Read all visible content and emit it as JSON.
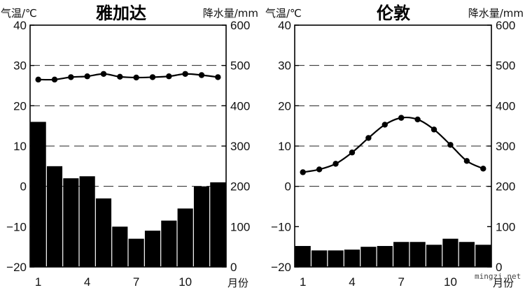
{
  "chart_data": [
    {
      "type": "bar+line",
      "title": "雅加达",
      "left_unit": "气温/℃",
      "right_unit": "降水量/mm",
      "x_unit": "月份",
      "categories": [
        "1",
        "2",
        "3",
        "4",
        "5",
        "6",
        "7",
        "8",
        "9",
        "10",
        "11",
        "12"
      ],
      "x_tick_labels": [
        "1",
        "4",
        "7",
        "10"
      ],
      "y_left_ticks": [
        "40",
        "30",
        "20",
        "10",
        "0",
        "−10",
        "−20"
      ],
      "y_right_ticks": [
        "600",
        "500",
        "400",
        "300",
        "200",
        "100",
        "0"
      ],
      "temperature_ylim": [
        -20,
        40
      ],
      "precipitation_ylim": [
        0,
        600
      ],
      "grid": "dashed at 0,10,20,30",
      "series": [
        {
          "name": "气温",
          "type": "line",
          "values": [
            26.5,
            26.5,
            27.1,
            27.3,
            27.9,
            27.2,
            27.0,
            27.1,
            27.3,
            27.9,
            27.6,
            27.1
          ]
        },
        {
          "name": "降水量",
          "type": "bar",
          "values": [
            360,
            250,
            220,
            225,
            170,
            100,
            70,
            90,
            115,
            145,
            200,
            210
          ]
        }
      ]
    },
    {
      "type": "bar+line",
      "title": "伦敦",
      "left_unit": "气温/℃",
      "right_unit": "降水量/mm",
      "x_unit": "月份",
      "categories": [
        "1",
        "2",
        "3",
        "4",
        "5",
        "6",
        "7",
        "8",
        "9",
        "10",
        "11",
        "12"
      ],
      "x_tick_labels": [
        "1",
        "4",
        "7",
        "10"
      ],
      "y_left_ticks": [
        "40",
        "30",
        "20",
        "10",
        "0",
        "−10",
        "−20"
      ],
      "y_right_ticks": [
        "600",
        "500",
        "400",
        "300",
        "200",
        "100",
        "0"
      ],
      "temperature_ylim": [
        -20,
        40
      ],
      "precipitation_ylim": [
        0,
        600
      ],
      "grid": "dashed at 0,10,20,30",
      "series": [
        {
          "name": "气温",
          "type": "line",
          "values": [
            3.5,
            4.2,
            5.6,
            8.4,
            12.0,
            15.3,
            17.0,
            16.6,
            14.1,
            10.3,
            6.3,
            4.4
          ]
        },
        {
          "name": "降水量",
          "type": "bar",
          "values": [
            52,
            41,
            41,
            43,
            50,
            52,
            62,
            62,
            55,
            70,
            62,
            55
          ]
        }
      ]
    }
  ],
  "watermark": "mingzi.net"
}
